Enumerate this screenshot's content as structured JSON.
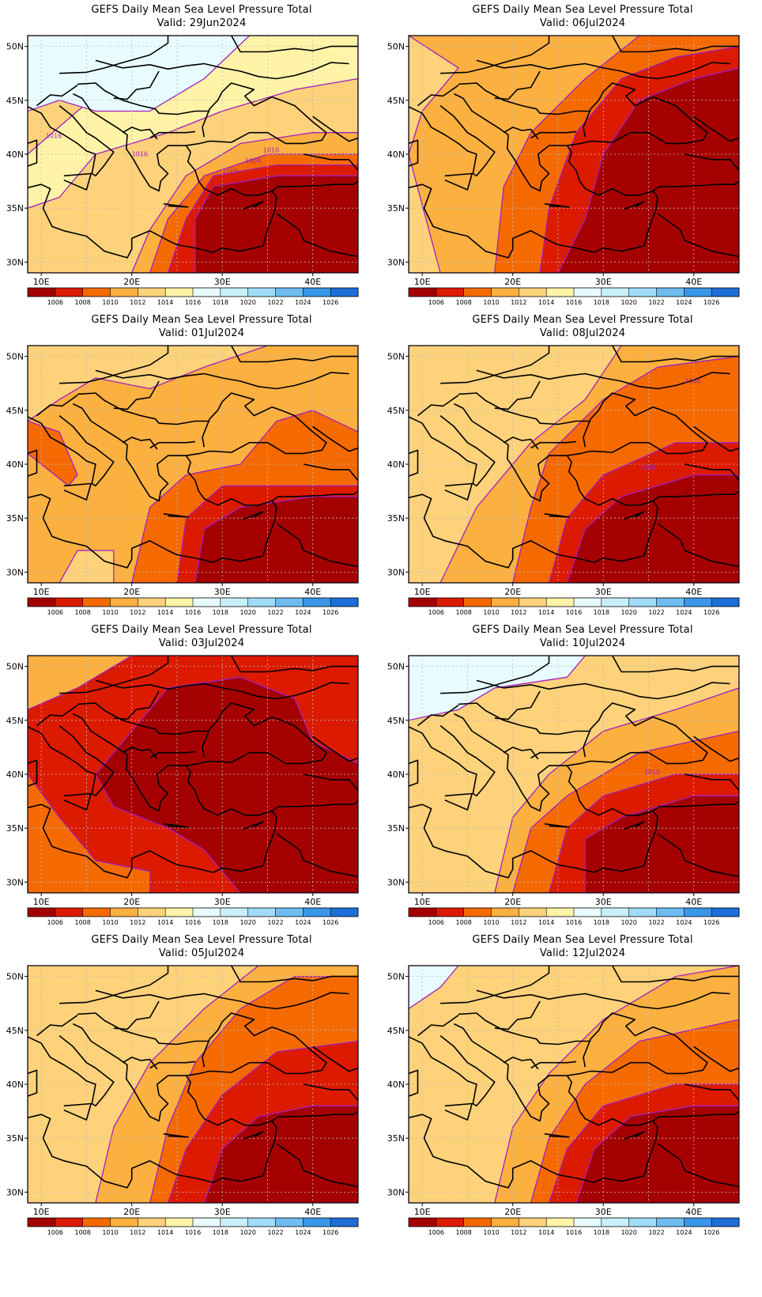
{
  "panels": [
    {
      "title": "GEFS Daily Mean Sea Level Pressure Total",
      "valid": "Valid: 29Jun2024",
      "scenario": 0
    },
    {
      "title": "GEFS Daily Mean Sea Level Pressure Total",
      "valid": "Valid: 06Jul2024",
      "scenario": 1
    },
    {
      "title": "GEFS Daily Mean Sea Level Pressure Total",
      "valid": "Valid: 01Jul2024",
      "scenario": 2
    },
    {
      "title": "GEFS Daily Mean Sea Level Pressure Total",
      "valid": "Valid: 08Jul2024",
      "scenario": 3
    },
    {
      "title": "GEFS Daily Mean Sea Level Pressure Total",
      "valid": "Valid: 03Jul2024",
      "scenario": 4
    },
    {
      "title": "GEFS Daily Mean Sea Level Pressure Total",
      "valid": "Valid: 10Jul2024",
      "scenario": 5
    },
    {
      "title": "GEFS Daily Mean Sea Level Pressure Total",
      "valid": "Valid: 05Jul2024",
      "scenario": 6
    },
    {
      "title": "GEFS Daily Mean Sea Level Pressure Total",
      "valid": "Valid: 12Jul2024",
      "scenario": 7
    }
  ],
  "lat_labels": [
    "50N",
    "45N",
    "40N",
    "35N",
    "30N"
  ],
  "lon_labels": [
    "10E",
    "20E",
    "30E",
    "40E"
  ],
  "colorbar": {
    "ticks": [
      "1006",
      "1008",
      "1010",
      "1012",
      "1014",
      "1016",
      "1018",
      "1020",
      "1022",
      "1024",
      "1026"
    ],
    "colors": [
      "#a50000",
      "#dc1a00",
      "#f56a00",
      "#fbb040",
      "#fdd27a",
      "#fff3a8",
      "#e8fcff",
      "#c8f0fb",
      "#a0dcf7",
      "#6ebcf0",
      "#3a96e8",
      "#1e6ed8"
    ]
  },
  "contour_labels": [
    "1016",
    "1016",
    "1010",
    "1008",
    "1010",
    "1008",
    "1010",
    "1008",
    "1010"
  ],
  "colors": {
    "contour": "#a020c0",
    "coast": "#000000",
    "grid": "#bbbbbb"
  }
}
